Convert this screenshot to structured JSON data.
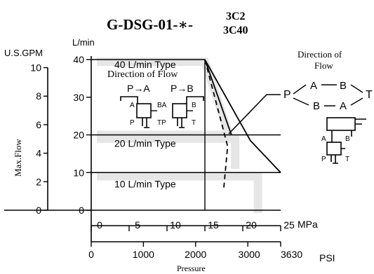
{
  "title": {
    "main": "G-DSG-01-∗-",
    "variant_top": "3C2",
    "variant_bottom": "3C40"
  },
  "chart_data": {
    "type": "line",
    "xlabel": "Pressure",
    "ylabel": "Max.Flow",
    "x_unit_mpa": "MPa",
    "x_unit_psi": "PSI",
    "y_unit_lmin": "L/min",
    "y_unit_gpm": "U.S.GPM",
    "xlim_mpa": [
      0,
      25
    ],
    "ylim_lmin": [
      0,
      40
    ],
    "mpa_ticks": [
      0,
      5,
      10,
      15,
      20,
      25
    ],
    "psi_ticks": [
      {
        "label": "0",
        "psi": 0
      },
      {
        "label": "1000",
        "psi": 1000
      },
      {
        "label": "2000",
        "psi": 2000
      },
      {
        "label": "3000",
        "psi": 3000
      },
      {
        "label": "3630",
        "psi": 3630
      }
    ],
    "lmin_ticks": [
      0,
      10,
      20,
      30,
      40
    ],
    "gpm_ticks": [
      0,
      2,
      4,
      6,
      8,
      10
    ],
    "type_labels": [
      {
        "label": "40 L/min Type",
        "lmin": 40
      },
      {
        "label": "20 L/min Type",
        "lmin": 20
      },
      {
        "label": "10 L/min Type",
        "lmin": 10
      }
    ],
    "series": [
      {
        "style": "solid",
        "x": [
          15,
          21,
          25
        ],
        "y": [
          40,
          18.5,
          10
        ]
      },
      {
        "style": "solid",
        "x": [
          15,
          18.5
        ],
        "y": [
          40,
          20
        ]
      },
      {
        "style": "dashed",
        "x": [
          15,
          18,
          17.5
        ],
        "y": [
          40,
          17,
          6
        ]
      }
    ]
  },
  "flow_diagram_inset": {
    "title": "Direction of Flow",
    "labels": [
      "P→A",
      "P→B"
    ],
    "ports_left": {
      "a": "A",
      "p": "P"
    },
    "ports_mid": {
      "ba": "BA",
      "tp": "TP"
    },
    "ports_right": {
      "b": "B",
      "t": "T"
    }
  },
  "flow_diagram_right": {
    "title_line1": "Direction of",
    "title_line2": "Flow",
    "p": "P",
    "a_top": "A",
    "b_top": "B",
    "t": "T",
    "b_bottom": "B",
    "a_bottom": "A",
    "sym_a": "A",
    "sym_b": "B",
    "sym_p": "P",
    "sym_t": "T"
  }
}
